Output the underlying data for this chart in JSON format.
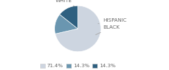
{
  "labels": [
    "WHITE",
    "HISPANIC",
    "BLACK"
  ],
  "values": [
    71.4,
    14.3,
    14.3
  ],
  "colors": [
    "#cdd5e0",
    "#6a96b0",
    "#2e6080"
  ],
  "legend_labels": [
    "71.4%",
    "14.3%",
    "14.3%"
  ],
  "background_color": "#ffffff",
  "label_fontsize": 5.2,
  "legend_fontsize": 5.2,
  "startangle": 90
}
